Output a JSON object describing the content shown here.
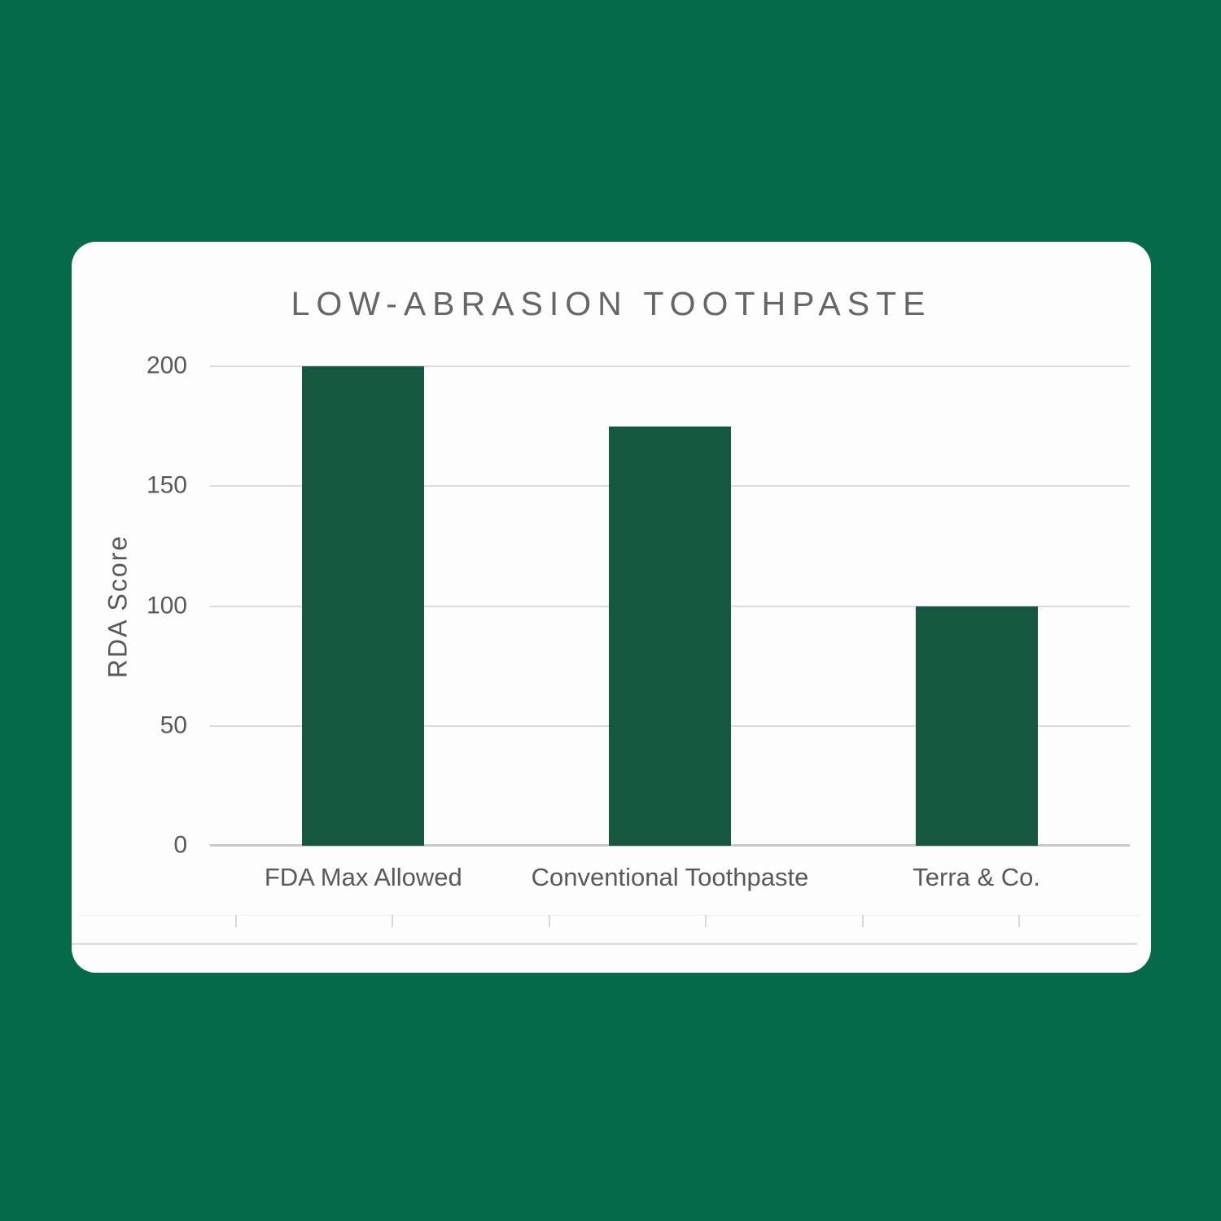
{
  "colors": {
    "page_background": "#046a4a",
    "card_background": "#fdfdfd",
    "title_text": "#666666",
    "axis_text": "#595959",
    "gridline": "#dcdcdc",
    "axis_line": "#c9c9c9"
  },
  "chart_data": {
    "type": "bar",
    "title": "LOW-ABRASION TOOTHPASTE",
    "xlabel": "",
    "ylabel": "RDA Score",
    "categories": [
      "FDA Max Allowed",
      "Conventional Toothpaste",
      "Terra & Co."
    ],
    "values": [
      200,
      175,
      100
    ],
    "ylim": [
      0,
      200
    ],
    "yticks": [
      0,
      50,
      100,
      150,
      200
    ],
    "bar_color": "#15573f",
    "grid": true,
    "legend_position": "none"
  },
  "decor": {
    "minor_tick_count": 6
  }
}
